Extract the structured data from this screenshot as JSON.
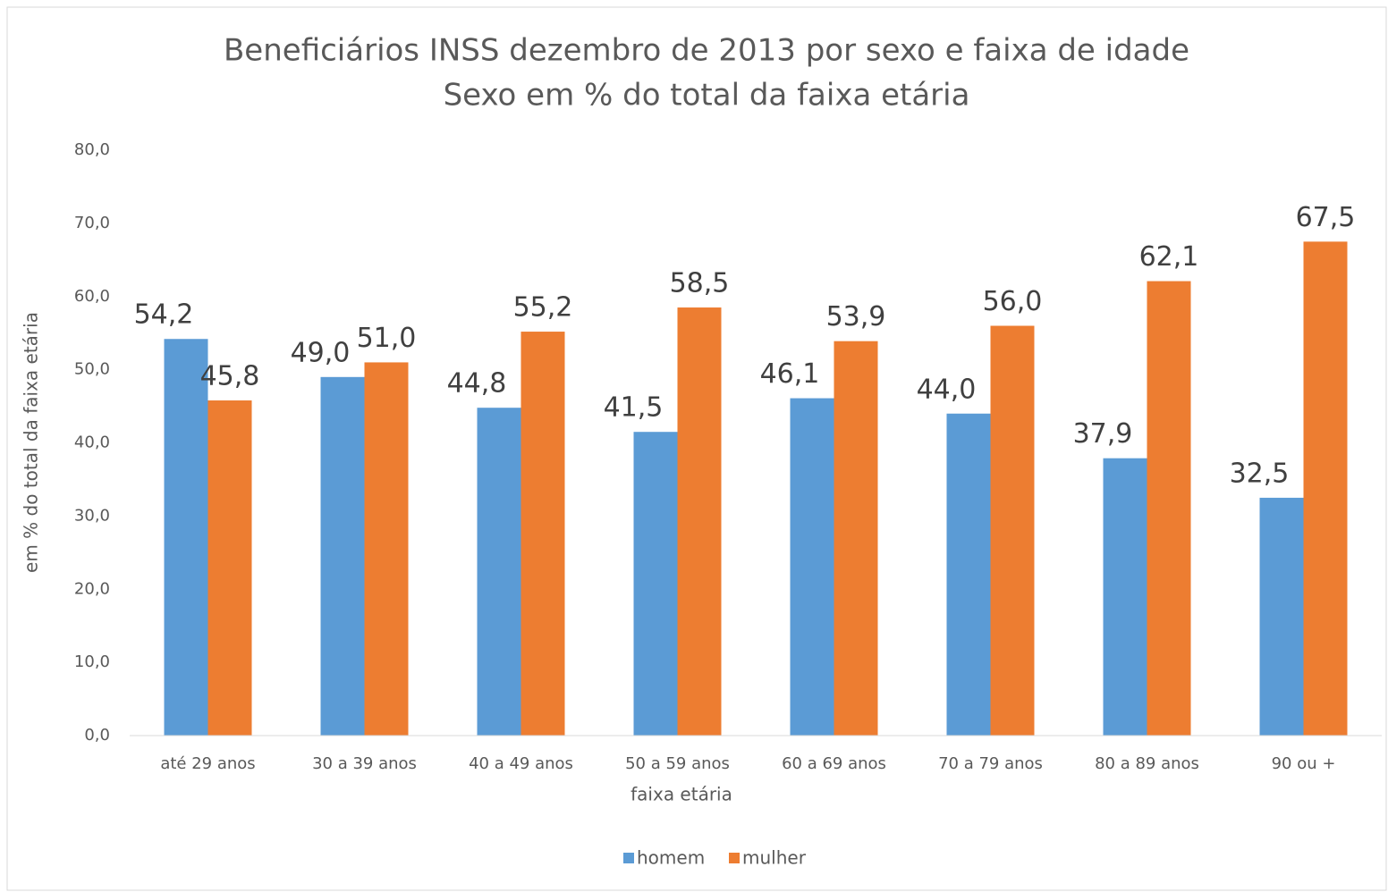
{
  "chart_data": {
    "type": "bar",
    "title": "Beneficiários INSS dezembro de 2013 por sexo e faixa de idade",
    "subtitle": "Sexo em % do total da faixa etária",
    "x_label": "faixa etária",
    "y_label": "em % do total da faixa etária",
    "categories": [
      "até 29 anos",
      "30 a 39 anos",
      "40 a 49 anos",
      "50 a 59 anos",
      "60 a 69 anos",
      "70 a 79 anos",
      "80 a 89 anos",
      "90 ou +"
    ],
    "series": [
      {
        "name": "homem",
        "color": "#5b9bd5",
        "values": [
          54.2,
          49.0,
          44.8,
          41.5,
          46.1,
          44.0,
          37.9,
          32.5
        ],
        "value_labels": [
          "54,2",
          "49,0",
          "44,8",
          "41,5",
          "46,1",
          "44,0",
          "37,9",
          "32,5"
        ]
      },
      {
        "name": "mulher",
        "color": "#ed7d31",
        "values": [
          45.8,
          51.0,
          55.2,
          58.5,
          53.9,
          56.0,
          62.1,
          67.5
        ],
        "value_labels": [
          "45,8",
          "51,0",
          "55,2",
          "58,5",
          "53,9",
          "56,0",
          "62,1",
          "67,5"
        ]
      }
    ],
    "ylim": [
      0,
      80
    ],
    "yticks": [
      {
        "value": 0,
        "label": "0,0"
      },
      {
        "value": 10,
        "label": "10,0"
      },
      {
        "value": 20,
        "label": "20,0"
      },
      {
        "value": 30,
        "label": "30,0"
      },
      {
        "value": 40,
        "label": "40,0"
      },
      {
        "value": 50,
        "label": "50,0"
      },
      {
        "value": 60,
        "label": "60,0"
      },
      {
        "value": 70,
        "label": "70,0"
      },
      {
        "value": 80,
        "label": "80,0"
      }
    ],
    "grid": false,
    "legend": "bottom"
  }
}
